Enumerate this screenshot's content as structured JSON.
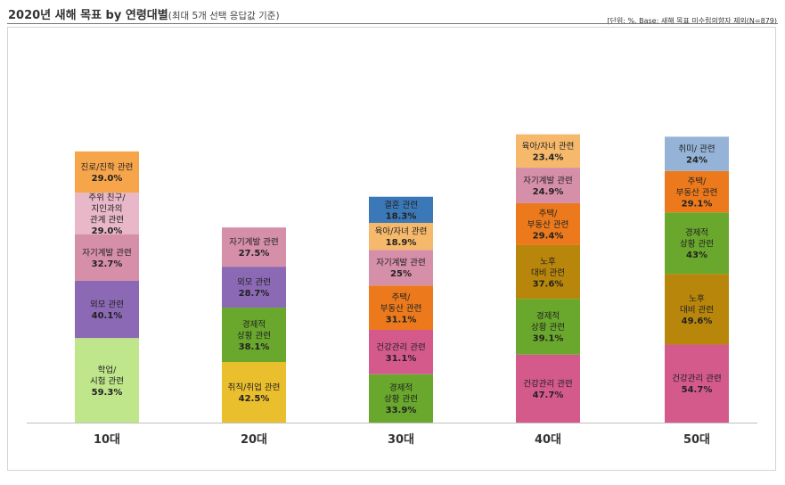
{
  "header": {
    "title_main": "2020년 새해 목표 by 연령대별",
    "title_sub": "(최대 5개 선택 응답값 기준)",
    "note": "[단위: %, Base: 새해 목표 미수립의향자 제외(N=879)"
  },
  "chart_data": {
    "type": "bar",
    "stacked": true,
    "title": "2020년 새해 목표 by 연령대별",
    "subtitle": "(최대 5개 선택 응답값 기준)",
    "unit": "%",
    "categories": [
      "10대",
      "20대",
      "30대",
      "40대",
      "50대"
    ],
    "stacks": [
      {
        "category": "10대",
        "segments": [
          {
            "label": [
              "학업/",
              "시험 관련"
            ],
            "value": 59.3,
            "value_label": "59.3%",
            "color": "#bfe68a"
          },
          {
            "label": [
              "외모 관련"
            ],
            "value": 40.1,
            "value_label": "40.1%",
            "color": "#8b69b4"
          },
          {
            "label": [
              "자기계발 관련"
            ],
            "value": 32.7,
            "value_label": "32.7%",
            "color": "#d68fa8"
          },
          {
            "label": [
              "주위 친구/",
              "지인과의",
              "관계 관련"
            ],
            "value": 29.0,
            "value_label": "29.0%",
            "color": "#e8b8c8"
          },
          {
            "label": [
              "진로/진학 관련"
            ],
            "value": 29.0,
            "value_label": "29.0%",
            "color": "#f6a54b"
          }
        ]
      },
      {
        "category": "20대",
        "segments": [
          {
            "label": [
              "취직/취업 관련"
            ],
            "value": 42.5,
            "value_label": "42.5%",
            "color": "#eabf2e"
          },
          {
            "label": [
              "경제적",
              "상황 관련"
            ],
            "value": 38.1,
            "value_label": "38.1%",
            "color": "#6aa82d"
          },
          {
            "label": [
              "외모 관련"
            ],
            "value": 28.7,
            "value_label": "28.7%",
            "color": "#8b69b4"
          },
          {
            "label": [
              "자기계발 관련"
            ],
            "value": 27.5,
            "value_label": "27.5%",
            "color": "#d68fa8"
          }
        ]
      },
      {
        "category": "30대",
        "segments": [
          {
            "label": [
              "경제적",
              "상황 관련"
            ],
            "value": 33.9,
            "value_label": "33.9%",
            "color": "#6aa82d"
          },
          {
            "label": [
              "건강관리 관련"
            ],
            "value": 31.1,
            "value_label": "31.1%",
            "color": "#d55a8c"
          },
          {
            "label": [
              "주택/",
              "부동산 관련"
            ],
            "value": 31.1,
            "value_label": "31.1%",
            "color": "#ec7a1c"
          },
          {
            "label": [
              "자기계발 관련"
            ],
            "value": 25,
            "value_label": "25%",
            "color": "#d68fa8"
          },
          {
            "label": [
              "육아/자녀 관련"
            ],
            "value": 18.9,
            "value_label": "18.9%",
            "color": "#f6b86b"
          },
          {
            "label": [
              "결혼 관련"
            ],
            "value": 18.3,
            "value_label": "18.3%",
            "color": "#3b78b8"
          }
        ]
      },
      {
        "category": "40대",
        "segments": [
          {
            "label": [
              "건강관리 관련"
            ],
            "value": 47.7,
            "value_label": "47.7%",
            "color": "#d55a8c"
          },
          {
            "label": [
              "경제적",
              "상황 관련"
            ],
            "value": 39.1,
            "value_label": "39.1%",
            "color": "#6aa82d"
          },
          {
            "label": [
              "노후",
              "대비 관련"
            ],
            "value": 37.6,
            "value_label": "37.6%",
            "color": "#b8860b"
          },
          {
            "label": [
              "주택/",
              "부동산 관련"
            ],
            "value": 29.4,
            "value_label": "29.4%",
            "color": "#ec7a1c"
          },
          {
            "label": [
              "자기계발 관련"
            ],
            "value": 24.9,
            "value_label": "24.9%",
            "color": "#d68fa8"
          },
          {
            "label": [
              "육아/자녀 관련"
            ],
            "value": 23.4,
            "value_label": "23.4%",
            "color": "#f6b86b"
          }
        ]
      },
      {
        "category": "50대",
        "segments": [
          {
            "label": [
              "건강관리 관련"
            ],
            "value": 54.7,
            "value_label": "54.7%",
            "color": "#d55a8c"
          },
          {
            "label": [
              "노후",
              "대비 관련"
            ],
            "value": 49.6,
            "value_label": "49.6%",
            "color": "#b8860b"
          },
          {
            "label": [
              "경제적",
              "상황 관련"
            ],
            "value": 43,
            "value_label": "43%",
            "color": "#6aa82d"
          },
          {
            "label": [
              "주택/",
              "부동산 관련"
            ],
            "value": 29.1,
            "value_label": "29.1%",
            "color": "#ec7a1c"
          },
          {
            "label": [
              "취미/ 관련"
            ],
            "value": 24,
            "value_label": "24%",
            "color": "#95b3d7"
          }
        ]
      }
    ]
  }
}
